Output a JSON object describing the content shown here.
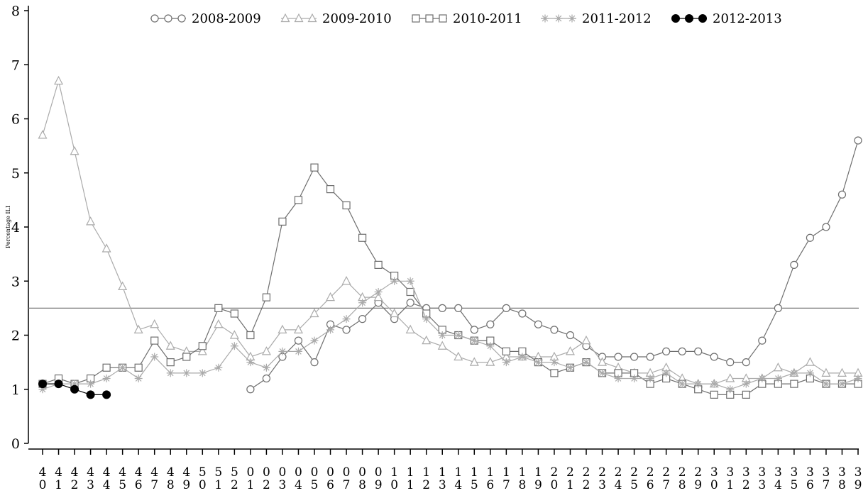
{
  "chart_data": {
    "type": "line",
    "title": "",
    "xlabel": "",
    "ylabel": "Percentage ILI",
    "ylim": [
      0,
      8
    ],
    "yticks": [
      "0",
      "1",
      "2",
      "3",
      "4",
      "5",
      "6",
      "7",
      "8"
    ],
    "categories": [
      "40",
      "41",
      "42",
      "43",
      "44",
      "45",
      "46",
      "47",
      "48",
      "49",
      "50",
      "51",
      "52",
      "01",
      "02",
      "03",
      "04",
      "05",
      "06",
      "07",
      "08",
      "09",
      "10",
      "11",
      "12",
      "13",
      "14",
      "15",
      "16",
      "17",
      "18",
      "19",
      "20",
      "21",
      "22",
      "23",
      "24",
      "25",
      "26",
      "27",
      "28",
      "29",
      "30",
      "31",
      "32",
      "33",
      "34",
      "35",
      "36",
      "37",
      "38",
      "39"
    ],
    "reference_line": 2.5,
    "legend_position": "top",
    "grid": false,
    "series": [
      {
        "name": "2008-2009",
        "marker": "circle",
        "color": "#6e6e6e",
        "values": [
          null,
          null,
          null,
          null,
          null,
          null,
          null,
          null,
          null,
          null,
          null,
          null,
          null,
          1.0,
          1.2,
          1.6,
          1.9,
          1.5,
          2.2,
          2.1,
          2.3,
          2.6,
          2.3,
          2.6,
          2.5,
          2.5,
          2.5,
          2.1,
          2.2,
          2.5,
          2.4,
          2.2,
          2.1,
          2.0,
          1.8,
          1.6,
          1.6,
          1.6,
          1.6,
          1.7,
          1.7,
          1.7,
          1.6,
          1.5,
          1.5,
          1.9,
          2.5,
          3.3,
          3.8,
          4.0,
          4.6,
          5.6
        ]
      },
      {
        "name": "2009-2010",
        "marker": "triangle",
        "color": "#aaaaaa",
        "values": [
          5.7,
          6.7,
          5.4,
          4.1,
          3.6,
          2.9,
          2.1,
          2.2,
          1.8,
          1.7,
          1.7,
          2.2,
          2.0,
          1.6,
          1.7,
          2.1,
          2.1,
          2.4,
          2.7,
          3.0,
          2.7,
          2.7,
          2.4,
          2.1,
          1.9,
          1.8,
          1.6,
          1.5,
          1.5,
          1.6,
          1.6,
          1.6,
          1.6,
          1.7,
          1.9,
          1.5,
          1.4,
          1.3,
          1.3,
          1.4,
          1.2,
          1.1,
          1.1,
          1.2,
          1.2,
          1.2,
          1.4,
          1.3,
          1.5,
          1.3,
          1.3,
          1.3
        ]
      },
      {
        "name": "2010-2011",
        "marker": "square",
        "color": "#6e6e6e",
        "values": [
          1.1,
          1.2,
          1.1,
          1.2,
          1.4,
          1.4,
          1.4,
          1.9,
          1.5,
          1.6,
          1.8,
          2.5,
          2.4,
          2.0,
          2.7,
          4.1,
          4.5,
          5.1,
          4.7,
          4.4,
          3.8,
          3.3,
          3.1,
          2.8,
          2.4,
          2.1,
          2.0,
          1.9,
          1.9,
          1.7,
          1.7,
          1.5,
          1.3,
          1.4,
          1.5,
          1.3,
          1.3,
          1.3,
          1.1,
          1.2,
          1.1,
          1.0,
          0.9,
          0.9,
          0.9,
          1.1,
          1.1,
          1.1,
          1.2,
          1.1,
          1.1,
          1.1
        ]
      },
      {
        "name": "2011-2012",
        "marker": "star",
        "color": "#aaaaaa",
        "values": [
          1.0,
          1.1,
          1.1,
          1.1,
          1.2,
          1.4,
          1.2,
          1.6,
          1.3,
          1.3,
          1.3,
          1.4,
          1.8,
          1.5,
          1.4,
          1.7,
          1.7,
          1.9,
          2.1,
          2.3,
          2.6,
          2.8,
          3.0,
          3.0,
          2.3,
          2.0,
          2.0,
          1.9,
          1.8,
          1.5,
          1.6,
          1.5,
          1.5,
          1.4,
          1.5,
          1.3,
          1.2,
          1.2,
          1.2,
          1.3,
          1.1,
          1.1,
          1.1,
          1.0,
          1.1,
          1.2,
          1.2,
          1.3,
          1.3,
          1.1,
          1.1,
          1.2
        ]
      },
      {
        "name": "2012-2013",
        "marker": "filled-circle",
        "color": "#000000",
        "values": [
          1.1,
          1.1,
          1.0,
          0.9,
          0.9,
          null,
          null,
          null,
          null,
          null,
          null,
          null,
          null,
          null,
          null,
          null,
          null,
          null,
          null,
          null,
          null,
          null,
          null,
          null,
          null,
          null,
          null,
          null,
          null,
          null,
          null,
          null,
          null,
          null,
          null,
          null,
          null,
          null,
          null,
          null,
          null,
          null,
          null,
          null,
          null,
          null,
          null,
          null,
          null,
          null,
          null,
          null
        ]
      }
    ]
  }
}
